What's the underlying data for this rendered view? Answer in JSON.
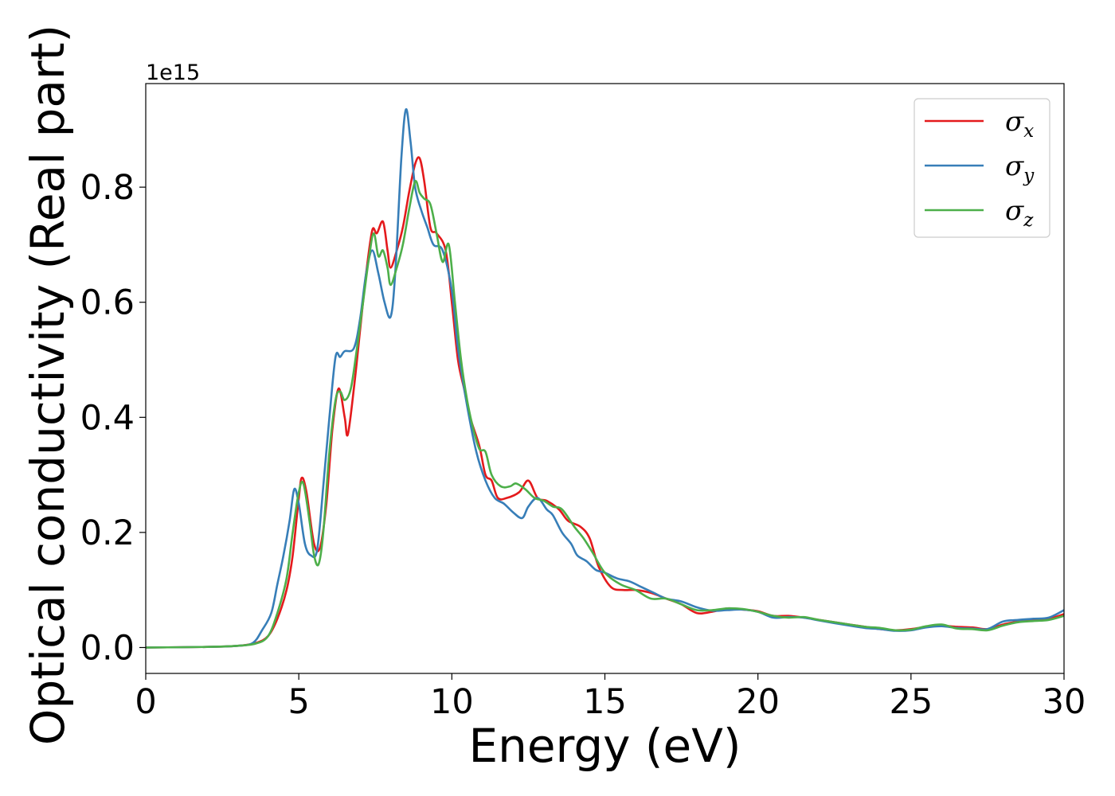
{
  "chart_data": {
    "type": "line",
    "title": "",
    "xlabel": "Energy (eV)",
    "ylabel": "Optical conductivity (Real part)",
    "y_offset_text": "1e15",
    "xlim": [
      0,
      30
    ],
    "ylim": [
      -0.045,
      0.98
    ],
    "x_ticks": [
      0,
      5,
      10,
      15,
      20,
      25,
      30
    ],
    "x_tick_labels": [
      "0",
      "5",
      "10",
      "15",
      "20",
      "25",
      "30"
    ],
    "y_ticks": [
      0.0,
      0.2,
      0.4,
      0.6,
      0.8
    ],
    "y_tick_labels": [
      "0.0",
      "0.2",
      "0.4",
      "0.6",
      "0.8"
    ],
    "grid": false,
    "legend_position": "top-right",
    "series": [
      {
        "name": "σx",
        "symbol": "σ",
        "subscript": "x",
        "color": "#e41a1c",
        "points": [
          [
            0,
            0
          ],
          [
            2,
            0.001
          ],
          [
            3,
            0.003
          ],
          [
            3.6,
            0.008
          ],
          [
            4,
            0.02
          ],
          [
            4.3,
            0.05
          ],
          [
            4.6,
            0.1
          ],
          [
            4.8,
            0.16
          ],
          [
            5.0,
            0.26
          ],
          [
            5.1,
            0.295
          ],
          [
            5.25,
            0.27
          ],
          [
            5.5,
            0.18
          ],
          [
            5.7,
            0.175
          ],
          [
            5.9,
            0.25
          ],
          [
            6.1,
            0.38
          ],
          [
            6.3,
            0.45
          ],
          [
            6.5,
            0.4
          ],
          [
            6.6,
            0.37
          ],
          [
            6.8,
            0.45
          ],
          [
            7.0,
            0.55
          ],
          [
            7.2,
            0.65
          ],
          [
            7.4,
            0.725
          ],
          [
            7.55,
            0.72
          ],
          [
            7.75,
            0.74
          ],
          [
            7.9,
            0.69
          ],
          [
            8.0,
            0.66
          ],
          [
            8.2,
            0.69
          ],
          [
            8.4,
            0.73
          ],
          [
            8.6,
            0.79
          ],
          [
            8.8,
            0.84
          ],
          [
            8.95,
            0.85
          ],
          [
            9.1,
            0.81
          ],
          [
            9.3,
            0.73
          ],
          [
            9.5,
            0.72
          ],
          [
            9.8,
            0.69
          ],
          [
            10.0,
            0.6
          ],
          [
            10.2,
            0.5
          ],
          [
            10.4,
            0.45
          ],
          [
            10.6,
            0.4
          ],
          [
            10.9,
            0.35
          ],
          [
            11.1,
            0.3
          ],
          [
            11.3,
            0.29
          ],
          [
            11.5,
            0.26
          ],
          [
            11.8,
            0.26
          ],
          [
            12.2,
            0.27
          ],
          [
            12.5,
            0.29
          ],
          [
            12.8,
            0.26
          ],
          [
            13.1,
            0.255
          ],
          [
            13.5,
            0.24
          ],
          [
            13.8,
            0.22
          ],
          [
            14.2,
            0.21
          ],
          [
            14.5,
            0.19
          ],
          [
            14.8,
            0.14
          ],
          [
            15.2,
            0.105
          ],
          [
            15.6,
            0.1
          ],
          [
            16.0,
            0.1
          ],
          [
            16.5,
            0.095
          ],
          [
            17.0,
            0.085
          ],
          [
            17.5,
            0.075
          ],
          [
            18.0,
            0.06
          ],
          [
            18.5,
            0.062
          ],
          [
            19.0,
            0.068
          ],
          [
            19.5,
            0.066
          ],
          [
            20.0,
            0.063
          ],
          [
            20.5,
            0.055
          ],
          [
            21.0,
            0.055
          ],
          [
            21.5,
            0.052
          ],
          [
            22.0,
            0.048
          ],
          [
            23.0,
            0.04
          ],
          [
            23.5,
            0.036
          ],
          [
            24.0,
            0.032
          ],
          [
            24.5,
            0.03
          ],
          [
            25.0,
            0.032
          ],
          [
            25.5,
            0.036
          ],
          [
            26.0,
            0.038
          ],
          [
            26.5,
            0.036
          ],
          [
            27.0,
            0.035
          ],
          [
            27.5,
            0.032
          ],
          [
            28.0,
            0.04
          ],
          [
            28.5,
            0.045
          ],
          [
            29.0,
            0.048
          ],
          [
            29.5,
            0.05
          ],
          [
            30.0,
            0.058
          ]
        ]
      },
      {
        "name": "σy",
        "symbol": "σ",
        "subscript": "y",
        "color": "#377eb8",
        "points": [
          [
            0,
            0
          ],
          [
            2,
            0.001
          ],
          [
            3,
            0.003
          ],
          [
            3.5,
            0.008
          ],
          [
            3.8,
            0.03
          ],
          [
            4.1,
            0.06
          ],
          [
            4.3,
            0.11
          ],
          [
            4.5,
            0.16
          ],
          [
            4.7,
            0.22
          ],
          [
            4.85,
            0.275
          ],
          [
            5.0,
            0.25
          ],
          [
            5.2,
            0.18
          ],
          [
            5.4,
            0.16
          ],
          [
            5.6,
            0.17
          ],
          [
            5.8,
            0.28
          ],
          [
            6.0,
            0.4
          ],
          [
            6.2,
            0.505
          ],
          [
            6.35,
            0.505
          ],
          [
            6.5,
            0.515
          ],
          [
            6.8,
            0.52
          ],
          [
            7.0,
            0.57
          ],
          [
            7.2,
            0.65
          ],
          [
            7.4,
            0.69
          ],
          [
            7.6,
            0.65
          ],
          [
            7.8,
            0.6
          ],
          [
            8.0,
            0.575
          ],
          [
            8.15,
            0.65
          ],
          [
            8.35,
            0.85
          ],
          [
            8.5,
            0.935
          ],
          [
            8.65,
            0.88
          ],
          [
            8.8,
            0.8
          ],
          [
            9.0,
            0.76
          ],
          [
            9.2,
            0.73
          ],
          [
            9.4,
            0.7
          ],
          [
            9.7,
            0.69
          ],
          [
            10.0,
            0.62
          ],
          [
            10.2,
            0.52
          ],
          [
            10.5,
            0.42
          ],
          [
            10.8,
            0.34
          ],
          [
            11.1,
            0.29
          ],
          [
            11.4,
            0.26
          ],
          [
            11.7,
            0.25
          ],
          [
            12.0,
            0.235
          ],
          [
            12.3,
            0.225
          ],
          [
            12.5,
            0.245
          ],
          [
            12.8,
            0.26
          ],
          [
            13.1,
            0.24
          ],
          [
            13.3,
            0.23
          ],
          [
            13.6,
            0.2
          ],
          [
            13.9,
            0.18
          ],
          [
            14.1,
            0.16
          ],
          [
            14.4,
            0.15
          ],
          [
            14.7,
            0.135
          ],
          [
            15.0,
            0.13
          ],
          [
            15.4,
            0.12
          ],
          [
            15.8,
            0.115
          ],
          [
            16.2,
            0.105
          ],
          [
            16.6,
            0.095
          ],
          [
            17.0,
            0.085
          ],
          [
            17.5,
            0.08
          ],
          [
            18.0,
            0.07
          ],
          [
            18.5,
            0.064
          ],
          [
            19.0,
            0.065
          ],
          [
            19.5,
            0.066
          ],
          [
            20.0,
            0.062
          ],
          [
            20.5,
            0.052
          ],
          [
            21.0,
            0.053
          ],
          [
            21.5,
            0.052
          ],
          [
            22.0,
            0.047
          ],
          [
            23.0,
            0.038
          ],
          [
            23.5,
            0.034
          ],
          [
            24.0,
            0.032
          ],
          [
            24.5,
            0.029
          ],
          [
            25.0,
            0.03
          ],
          [
            25.5,
            0.035
          ],
          [
            26.0,
            0.037
          ],
          [
            26.5,
            0.034
          ],
          [
            27.0,
            0.033
          ],
          [
            27.5,
            0.032
          ],
          [
            28.0,
            0.045
          ],
          [
            28.5,
            0.048
          ],
          [
            29.0,
            0.05
          ],
          [
            29.5,
            0.052
          ],
          [
            30.0,
            0.065
          ]
        ]
      },
      {
        "name": "σz",
        "symbol": "σ",
        "subscript": "z",
        "color": "#4daf4a",
        "points": [
          [
            0,
            0
          ],
          [
            2,
            0.001
          ],
          [
            3,
            0.003
          ],
          [
            3.6,
            0.007
          ],
          [
            4.0,
            0.02
          ],
          [
            4.3,
            0.06
          ],
          [
            4.6,
            0.12
          ],
          [
            4.8,
            0.2
          ],
          [
            5.0,
            0.27
          ],
          [
            5.15,
            0.285
          ],
          [
            5.35,
            0.22
          ],
          [
            5.5,
            0.16
          ],
          [
            5.65,
            0.145
          ],
          [
            5.8,
            0.2
          ],
          [
            6.0,
            0.34
          ],
          [
            6.2,
            0.43
          ],
          [
            6.35,
            0.445
          ],
          [
            6.5,
            0.43
          ],
          [
            6.7,
            0.45
          ],
          [
            6.9,
            0.52
          ],
          [
            7.1,
            0.6
          ],
          [
            7.3,
            0.68
          ],
          [
            7.45,
            0.72
          ],
          [
            7.6,
            0.68
          ],
          [
            7.75,
            0.69
          ],
          [
            7.9,
            0.66
          ],
          [
            8.0,
            0.63
          ],
          [
            8.2,
            0.66
          ],
          [
            8.4,
            0.7
          ],
          [
            8.6,
            0.76
          ],
          [
            8.8,
            0.81
          ],
          [
            8.95,
            0.79
          ],
          [
            9.1,
            0.78
          ],
          [
            9.3,
            0.77
          ],
          [
            9.5,
            0.72
          ],
          [
            9.7,
            0.67
          ],
          [
            9.9,
            0.7
          ],
          [
            10.1,
            0.6
          ],
          [
            10.3,
            0.5
          ],
          [
            10.5,
            0.43
          ],
          [
            10.7,
            0.38
          ],
          [
            10.9,
            0.345
          ],
          [
            11.1,
            0.34
          ],
          [
            11.3,
            0.3
          ],
          [
            11.6,
            0.28
          ],
          [
            11.9,
            0.28
          ],
          [
            12.1,
            0.285
          ],
          [
            12.4,
            0.275
          ],
          [
            12.7,
            0.26
          ],
          [
            13.0,
            0.255
          ],
          [
            13.3,
            0.245
          ],
          [
            13.6,
            0.24
          ],
          [
            14.0,
            0.21
          ],
          [
            14.3,
            0.19
          ],
          [
            14.6,
            0.165
          ],
          [
            15.0,
            0.13
          ],
          [
            15.5,
            0.11
          ],
          [
            16.0,
            0.1
          ],
          [
            16.5,
            0.085
          ],
          [
            17.0,
            0.085
          ],
          [
            17.5,
            0.075
          ],
          [
            18.0,
            0.065
          ],
          [
            18.5,
            0.065
          ],
          [
            19.0,
            0.068
          ],
          [
            19.5,
            0.067
          ],
          [
            20.0,
            0.062
          ],
          [
            20.5,
            0.055
          ],
          [
            21.0,
            0.052
          ],
          [
            21.5,
            0.053
          ],
          [
            22.0,
            0.048
          ],
          [
            23.0,
            0.04
          ],
          [
            23.5,
            0.036
          ],
          [
            24.0,
            0.034
          ],
          [
            24.5,
            0.03
          ],
          [
            25.0,
            0.031
          ],
          [
            25.5,
            0.037
          ],
          [
            26.0,
            0.04
          ],
          [
            26.5,
            0.033
          ],
          [
            27.0,
            0.032
          ],
          [
            27.5,
            0.03
          ],
          [
            28.0,
            0.038
          ],
          [
            28.5,
            0.044
          ],
          [
            29.0,
            0.046
          ],
          [
            29.5,
            0.048
          ],
          [
            30.0,
            0.055
          ]
        ]
      }
    ]
  }
}
